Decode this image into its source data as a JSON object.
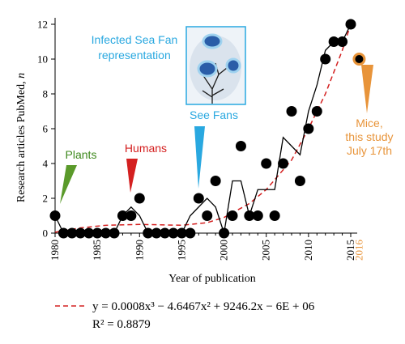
{
  "chart_data": {
    "type": "scatter",
    "xlabel": "Year of publication",
    "ylabel_text": "Research articles PubMed, ",
    "ylabel_italic": "n",
    "xlim": [
      1980,
      2015
    ],
    "ylim": [
      0,
      12
    ],
    "xticks": [
      1980,
      1985,
      1990,
      1995,
      2000,
      2005,
      2010,
      2015
    ],
    "yticks": [
      0,
      2,
      4,
      6,
      8,
      10,
      12
    ],
    "extra_xtick": "2016",
    "extra_xtick_color": "#e8943a",
    "grid": false,
    "series": [
      {
        "points": [
          [
            1980,
            1
          ],
          [
            1981,
            0
          ],
          [
            1982,
            0
          ],
          [
            1983,
            0
          ],
          [
            1984,
            0
          ],
          [
            1985,
            0
          ],
          [
            1986,
            0
          ],
          [
            1987,
            0
          ],
          [
            1988,
            1
          ],
          [
            1989,
            1
          ],
          [
            1990,
            2
          ],
          [
            1991,
            0
          ],
          [
            1992,
            0
          ],
          [
            1993,
            0
          ],
          [
            1994,
            0
          ],
          [
            1995,
            0
          ],
          [
            1996,
            0
          ],
          [
            1997,
            2
          ],
          [
            1998,
            1
          ],
          [
            1999,
            3
          ],
          [
            2000,
            0
          ],
          [
            2001,
            1
          ],
          [
            2002,
            5
          ],
          [
            2003,
            1
          ],
          [
            2004,
            1
          ],
          [
            2005,
            4
          ],
          [
            2006,
            1
          ],
          [
            2007,
            4
          ],
          [
            2008,
            7
          ],
          [
            2009,
            3
          ],
          [
            2010,
            6
          ],
          [
            2011,
            7
          ],
          [
            2012,
            10
          ],
          [
            2013,
            11
          ],
          [
            2014,
            11
          ],
          [
            2015,
            12
          ]
        ],
        "color": "#000000"
      },
      {
        "style": "moving-average line",
        "points": [
          [
            1980,
            1
          ],
          [
            1981,
            0
          ],
          [
            1982,
            0
          ],
          [
            1983,
            0
          ],
          [
            1984,
            0
          ],
          [
            1985,
            0
          ],
          [
            1986,
            0
          ],
          [
            1987,
            0
          ],
          [
            1988,
            1
          ],
          [
            1989,
            1.5
          ],
          [
            1990,
            1
          ],
          [
            1991,
            0
          ],
          [
            1992,
            0
          ],
          [
            1993,
            0
          ],
          [
            1994,
            0
          ],
          [
            1995,
            0
          ],
          [
            1996,
            1
          ],
          [
            1997,
            1.5
          ],
          [
            1998,
            2
          ],
          [
            1999,
            1.5
          ],
          [
            2000,
            0
          ],
          [
            2001,
            3
          ],
          [
            2002,
            3
          ],
          [
            2003,
            1
          ],
          [
            2004,
            2.5
          ],
          [
            2005,
            2.5
          ],
          [
            2006,
            2.5
          ],
          [
            2007,
            5.5
          ],
          [
            2008,
            5
          ],
          [
            2009,
            4.5
          ],
          [
            2010,
            7
          ],
          [
            2011,
            8.5
          ],
          [
            2012,
            10.5
          ],
          [
            2013,
            11
          ],
          [
            2014,
            11
          ],
          [
            2015,
            12
          ]
        ],
        "color": "#000000"
      },
      {
        "style": "dashed polynomial trend",
        "points": [
          [
            1980,
            0.05
          ],
          [
            1983,
            0.3
          ],
          [
            1986,
            0.45
          ],
          [
            1990,
            0.5
          ],
          [
            1995,
            0.45
          ],
          [
            1998,
            0.6
          ],
          [
            2000,
            0.9
          ],
          [
            2003,
            1.7
          ],
          [
            2005,
            2.5
          ],
          [
            2008,
            4.2
          ],
          [
            2010,
            6.0
          ],
          [
            2012,
            8.0
          ],
          [
            2014,
            10.5
          ],
          [
            2015,
            12.0
          ]
        ],
        "color": "#d42020"
      },
      {
        "style": "highlighted point",
        "points": [
          [
            2016,
            10
          ]
        ],
        "color": "#000000",
        "ring": "#e8943a"
      }
    ],
    "trend_equation": "y = 0.0008x³ − 4.6467x² + 9246.2x − 6E + 06",
    "r_squared": "R² = 0.8879",
    "annotations": [
      {
        "text": "Plants",
        "color": "#3f8a1e",
        "x": 1980.8
      },
      {
        "text": "Humans",
        "color": "#d42020",
        "x": 1989
      },
      {
        "text": "See Fans",
        "color": "#29a8e0",
        "x": 1996.8
      },
      {
        "text": "Infected Sea Fan",
        "text2": "representation",
        "color": "#29a8e0"
      },
      {
        "text": "Mice,",
        "text2": "this study",
        "text3": "July 17th",
        "color": "#e8943a",
        "x": 2016
      }
    ]
  }
}
